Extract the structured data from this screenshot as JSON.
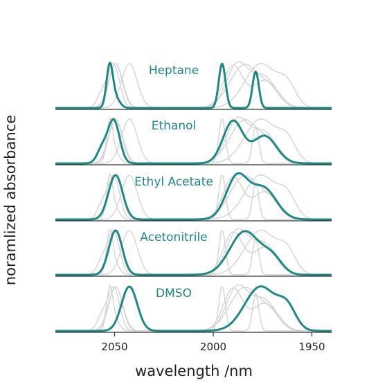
{
  "chart_data": {
    "type": "line",
    "xlabel": "wavelength /nm",
    "ylabel": "noramlized absorbance",
    "xlim": [
      2080,
      1940
    ],
    "x_ticks": [
      2050,
      2000,
      1950
    ],
    "x_reversed": true,
    "colors": {
      "highlight": "#1b8a85",
      "background": "#d4d4d4",
      "axis": "#333333"
    },
    "panels": [
      {
        "name": "Heptane",
        "peaks": [
          {
            "center": 2052.5,
            "height": 0.93,
            "width": 1.6
          },
          {
            "center": 2049.5,
            "height": 0.22,
            "width": 2.2
          },
          {
            "center": 1995.5,
            "height": 1.0,
            "width": 1.7
          },
          {
            "center": 1978.5,
            "height": 0.82,
            "width": 1.6
          }
        ]
      },
      {
        "name": "Ethanol",
        "peaks": [
          {
            "center": 2050.5,
            "height": 0.98,
            "width": 3.0
          },
          {
            "center": 2056.5,
            "height": 0.3,
            "width": 2.5
          },
          {
            "center": 1990.0,
            "height": 0.95,
            "width": 5.0
          },
          {
            "center": 1974.0,
            "height": 0.62,
            "width": 6.0
          }
        ]
      },
      {
        "name": "Ethyl Acetate",
        "peaks": [
          {
            "center": 2049.5,
            "height": 1.0,
            "width": 3.6
          },
          {
            "center": 1988.0,
            "height": 0.95,
            "width": 5.5
          },
          {
            "center": 1974.5,
            "height": 0.7,
            "width": 6.5
          }
        ]
      },
      {
        "name": "Acetonitrile",
        "peaks": [
          {
            "center": 2049.5,
            "height": 1.0,
            "width": 3.4
          },
          {
            "center": 1984.0,
            "height": 0.98,
            "width": 7.5
          },
          {
            "center": 1970.0,
            "height": 0.35,
            "width": 5.0
          }
        ]
      },
      {
        "name": "DMSO",
        "peaks": [
          {
            "center": 2042.5,
            "height": 1.0,
            "width": 4.0
          },
          {
            "center": 1976.0,
            "height": 1.0,
            "width": 8.0
          },
          {
            "center": 1962.5,
            "height": 0.45,
            "width": 4.5
          }
        ]
      }
    ]
  }
}
